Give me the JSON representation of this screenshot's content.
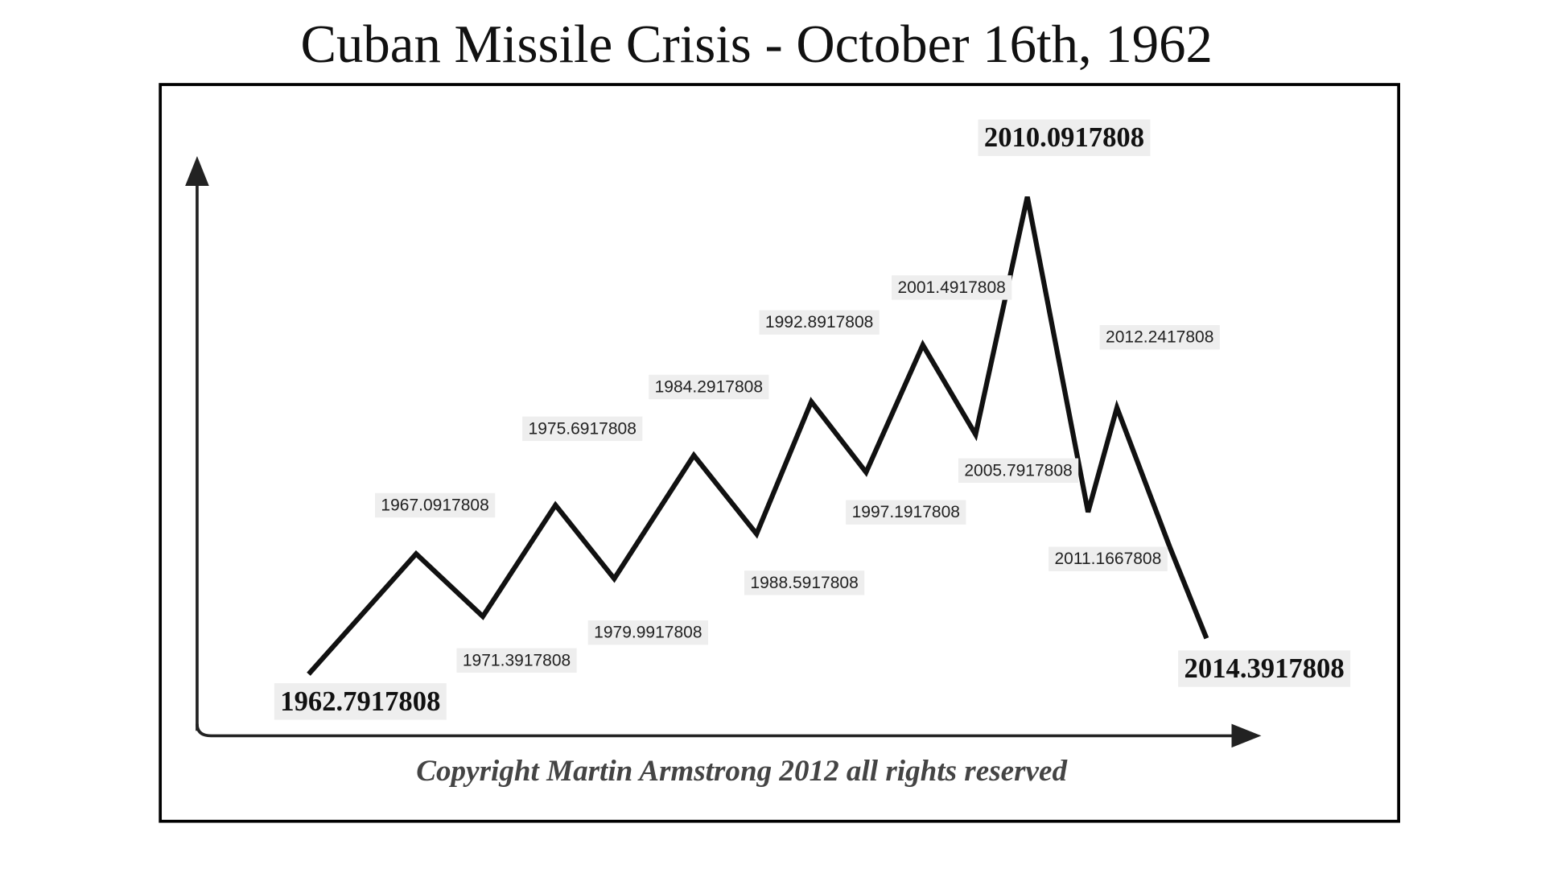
{
  "title": "Cuban Missile Crisis - October 16th, 1962",
  "nodes": [
    {
      "label": "1962.7917808"
    },
    {
      "label": "1967.0917808"
    },
    {
      "label": "1971.3917808"
    },
    {
      "label": "1975.6917808"
    },
    {
      "label": "1979.9917808"
    },
    {
      "label": "1984.2917808"
    },
    {
      "label": "1988.5917808"
    },
    {
      "label": "1992.8917808"
    },
    {
      "label": "1997.1917808"
    },
    {
      "label": "2001.4917808"
    },
    {
      "label": "2005.7917808"
    },
    {
      "label": "2010.0917808"
    },
    {
      "label": "2012.2417808"
    },
    {
      "label": "2011.1667808"
    },
    {
      "label": "2014.3917808"
    }
  ],
  "copyright": "Copyright Martin Armstrong 2012 all rights reserved"
}
